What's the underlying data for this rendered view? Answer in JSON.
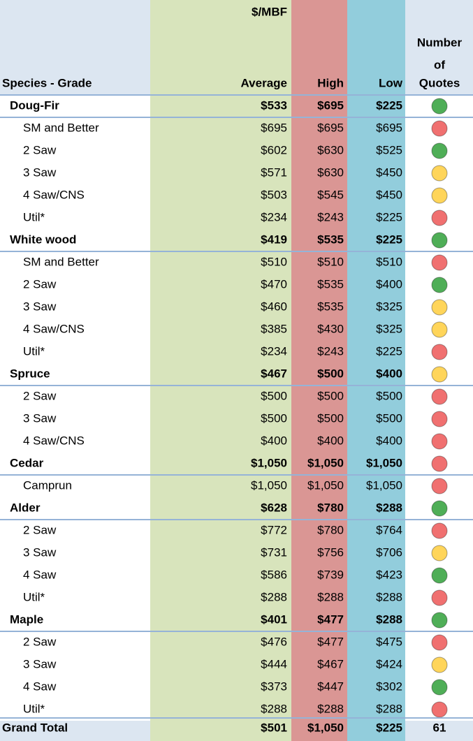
{
  "header": {
    "unit": "$/MBF",
    "quotes_label": [
      "Number",
      "of",
      "Quotes"
    ],
    "columns": [
      "Species - Grade",
      "Average",
      "High",
      "Low"
    ]
  },
  "rows": [
    {
      "label": "Doug-Fir",
      "group": true,
      "average": "$533",
      "high": "$695",
      "low": "$225",
      "indicator": "#4fae57"
    },
    {
      "label": "SM and Better",
      "group": false,
      "average": "$695",
      "high": "$695",
      "low": "$695",
      "indicator": "#f07070"
    },
    {
      "label": "2 Saw",
      "group": false,
      "average": "$602",
      "high": "$630",
      "low": "$525",
      "indicator": "#4fae57"
    },
    {
      "label": "3 Saw",
      "group": false,
      "average": "$571",
      "high": "$630",
      "low": "$450",
      "indicator": "#ffd55a"
    },
    {
      "label": "4 Saw/CNS",
      "group": false,
      "average": "$503",
      "high": "$545",
      "low": "$450",
      "indicator": "#ffd55a"
    },
    {
      "label": "Util*",
      "group": false,
      "average": "$234",
      "high": "$243",
      "low": "$225",
      "indicator": "#f07070"
    },
    {
      "label": "White wood",
      "group": true,
      "average": "$419",
      "high": "$535",
      "low": "$225",
      "indicator": "#4fae57"
    },
    {
      "label": "SM and Better",
      "group": false,
      "average": "$510",
      "high": "$510",
      "low": "$510",
      "indicator": "#f07070"
    },
    {
      "label": "2 Saw",
      "group": false,
      "average": "$470",
      "high": "$535",
      "low": "$400",
      "indicator": "#4fae57"
    },
    {
      "label": "3 Saw",
      "group": false,
      "average": "$460",
      "high": "$535",
      "low": "$325",
      "indicator": "#ffd55a"
    },
    {
      "label": "4 Saw/CNS",
      "group": false,
      "average": "$385",
      "high": "$430",
      "low": "$325",
      "indicator": "#ffd55a"
    },
    {
      "label": "Util*",
      "group": false,
      "average": "$234",
      "high": "$243",
      "low": "$225",
      "indicator": "#f07070"
    },
    {
      "label": "Spruce",
      "group": true,
      "average": "$467",
      "high": "$500",
      "low": "$400",
      "indicator": "#ffd55a"
    },
    {
      "label": "2 Saw",
      "group": false,
      "average": "$500",
      "high": "$500",
      "low": "$500",
      "indicator": "#f07070"
    },
    {
      "label": "3 Saw",
      "group": false,
      "average": "$500",
      "high": "$500",
      "low": "$500",
      "indicator": "#f07070"
    },
    {
      "label": "4 Saw/CNS",
      "group": false,
      "average": "$400",
      "high": "$400",
      "low": "$400",
      "indicator": "#f07070"
    },
    {
      "label": "Cedar",
      "group": true,
      "average": "$1,050",
      "high": "$1,050",
      "low": "$1,050",
      "indicator": "#f07070"
    },
    {
      "label": "Camprun",
      "group": false,
      "average": "$1,050",
      "high": "$1,050",
      "low": "$1,050",
      "indicator": "#f07070"
    },
    {
      "label": "Alder",
      "group": true,
      "average": "$628",
      "high": "$780",
      "low": "$288",
      "indicator": "#4fae57"
    },
    {
      "label": "2 Saw",
      "group": false,
      "average": "$772",
      "high": "$780",
      "low": "$764",
      "indicator": "#f07070"
    },
    {
      "label": "3 Saw",
      "group": false,
      "average": "$731",
      "high": "$756",
      "low": "$706",
      "indicator": "#ffd55a"
    },
    {
      "label": "4 Saw",
      "group": false,
      "average": "$586",
      "high": "$739",
      "low": "$423",
      "indicator": "#4fae57"
    },
    {
      "label": "Util*",
      "group": false,
      "average": "$288",
      "high": "$288",
      "low": "$288",
      "indicator": "#f07070"
    },
    {
      "label": "Maple",
      "group": true,
      "average": "$401",
      "high": "$477",
      "low": "$288",
      "indicator": "#4fae57"
    },
    {
      "label": "2 Saw",
      "group": false,
      "average": "$476",
      "high": "$477",
      "low": "$475",
      "indicator": "#f07070"
    },
    {
      "label": "3 Saw",
      "group": false,
      "average": "$444",
      "high": "$467",
      "low": "$424",
      "indicator": "#ffd55a"
    },
    {
      "label": "4 Saw",
      "group": false,
      "average": "$373",
      "high": "$447",
      "low": "$302",
      "indicator": "#4fae57"
    },
    {
      "label": "Util*",
      "group": false,
      "average": "$288",
      "high": "$288",
      "low": "$288",
      "indicator": "#f07070"
    }
  ],
  "grand_total": {
    "label": "Grand Total",
    "average": "$501",
    "high": "$1,050",
    "low": "$225",
    "quotes": "61"
  }
}
